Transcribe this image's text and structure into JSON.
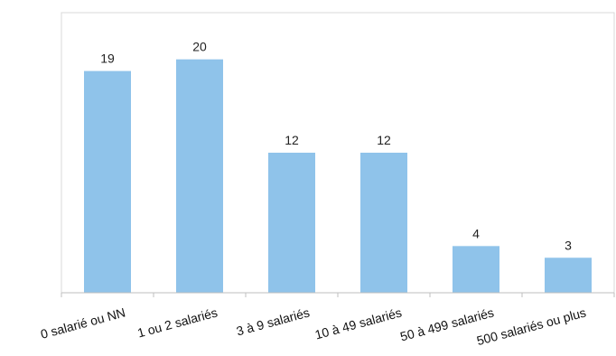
{
  "chart_data": {
    "type": "bar",
    "categories": [
      "0 salarié ou NN",
      "1 ou 2 salariés",
      "3 à 9 salariés",
      "10 à 49 salariés",
      "50 à 499 salariés",
      "500 salariés ou plus"
    ],
    "values": [
      19,
      20,
      12,
      12,
      4,
      3
    ],
    "title": "",
    "xlabel": "",
    "ylabel": "",
    "ylim": [
      0,
      24
    ],
    "grid": false,
    "legend": "none",
    "data_labels": true,
    "bar_color": "#8fc3ea",
    "axis_color": "#bfbfbf"
  }
}
